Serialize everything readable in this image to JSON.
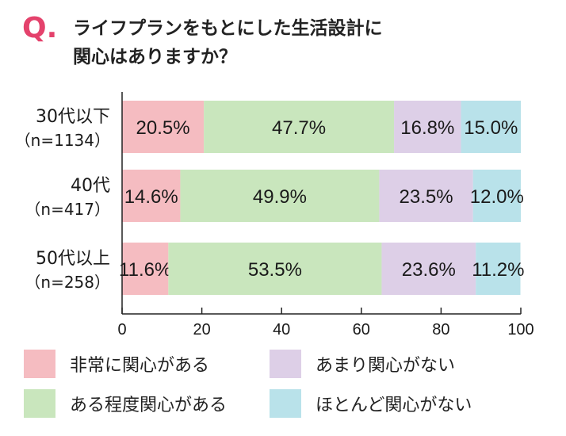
{
  "question": {
    "mark": "Q.",
    "line1": "ライフプランをもとにした生活設計に",
    "line2": "関心はありますか？"
  },
  "chart_data": {
    "type": "bar",
    "orientation": "horizontal",
    "stacked": true,
    "categories": [
      {
        "label": "30代以下",
        "sub": "（n=1134）"
      },
      {
        "label": "40代",
        "sub": "（n=417）"
      },
      {
        "label": "50代以上",
        "sub": "（n=258）"
      }
    ],
    "series": [
      {
        "name": "非常に関心がある",
        "color": "#f5bcc1",
        "values": [
          20.5,
          14.6,
          11.6
        ]
      },
      {
        "name": "ある程度関心がある",
        "color": "#c9e6bd",
        "values": [
          47.7,
          49.9,
          53.5
        ]
      },
      {
        "name": "あまり関心がない",
        "color": "#ddcfe7",
        "values": [
          16.8,
          23.5,
          23.6
        ]
      },
      {
        "name": "ほとんど関心がない",
        "color": "#b9e2ea",
        "values": [
          15.0,
          12.0,
          11.2
        ]
      }
    ],
    "value_labels": [
      [
        "20.5%",
        "47.7%",
        "16.8%",
        "15.0%"
      ],
      [
        "14.6%",
        "49.9%",
        "23.5%",
        "12.0%"
      ],
      [
        "11.6%",
        "53.5%",
        "23.6%",
        "11.2%"
      ]
    ],
    "xlim": [
      0,
      100
    ],
    "xticks": [
      "0",
      "20",
      "40",
      "60",
      "80",
      "100"
    ],
    "grid": false,
    "legend_position": "bottom"
  }
}
